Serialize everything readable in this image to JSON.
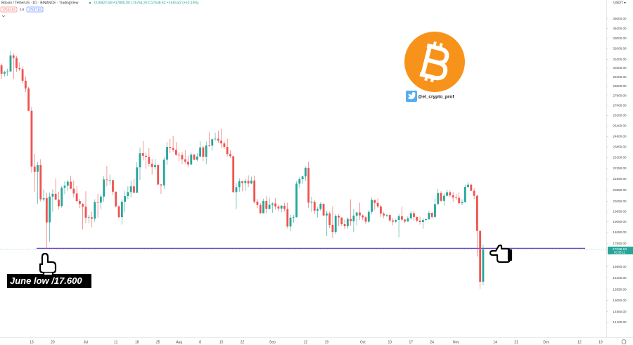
{
  "chart_data": {
    "type": "candlestick",
    "title": "Bitcoin / TetherUS · 1D · BINANCE · TradingView",
    "ohlc_legend": "O15922.68 H17800.00 L15754.26 C17538.62 +1616.82 (+10.15%)",
    "price_boxes": [
      "17534.83",
      "2.8",
      "17537.63"
    ],
    "currency": "USDT ▾",
    "up_color": "#26a69a",
    "down_color": "#ef5350",
    "log_scale": true,
    "grid": false,
    "ylim": [
      13480,
      37040
    ],
    "yticks": [
      {
        "value": 35000,
        "label": "35000.00"
      },
      {
        "value": 34000,
        "label": "34000.00"
      },
      {
        "value": 33000,
        "label": "33000.00"
      },
      {
        "value": 32000,
        "label": "32000.00"
      },
      {
        "value": 31000,
        "label": "31000.00"
      },
      {
        "value": 30200,
        "label": "30200.00"
      },
      {
        "value": 29400,
        "label": "29400.00"
      },
      {
        "value": 28600,
        "label": "28600.00"
      },
      {
        "value": 27800,
        "label": "27800.00"
      },
      {
        "value": 27000,
        "label": "27000.00"
      },
      {
        "value": 26200,
        "label": "26200.00"
      },
      {
        "value": 25400,
        "label": "25400.00"
      },
      {
        "value": 24600,
        "label": "24600.00"
      },
      {
        "value": 23850,
        "label": "23850.00"
      },
      {
        "value": 23100,
        "label": "23100.00"
      },
      {
        "value": 22350,
        "label": "22350.00"
      },
      {
        "value": 21650,
        "label": "21650.00"
      },
      {
        "value": 20950,
        "label": "20950.00"
      },
      {
        "value": 20250,
        "label": "20250.00"
      },
      {
        "value": 19650,
        "label": "19650.00"
      },
      {
        "value": 19050,
        "label": "19050.00"
      },
      {
        "value": 18450,
        "label": "18450.00"
      },
      {
        "value": 17850,
        "label": "17850.00"
      },
      {
        "value": 16650,
        "label": "16650.00"
      },
      {
        "value": 16100,
        "label": "16100.00"
      },
      {
        "value": 15550,
        "label": "15550.00"
      },
      {
        "value": 15050,
        "label": "15050.00"
      },
      {
        "value": 14550,
        "label": "14550.00"
      },
      {
        "value": 14100,
        "label": "14100.00"
      }
    ],
    "categories": [
      null,
      null,
      null,
      null,
      null,
      null,
      null,
      null,
      null,
      null,
      "13",
      null,
      null,
      null,
      null,
      null,
      null,
      "20",
      null,
      null,
      null,
      null,
      null,
      null,
      null,
      null,
      null,
      null,
      "Jul",
      null,
      null,
      null,
      null,
      null,
      null,
      null,
      null,
      null,
      "11",
      null,
      null,
      null,
      null,
      null,
      null,
      "18",
      null,
      null,
      null,
      null,
      null,
      null,
      "25",
      null,
      null,
      null,
      null,
      null,
      null,
      "Aug",
      null,
      null,
      null,
      null,
      null,
      null,
      "8",
      null,
      null,
      null,
      null,
      null,
      null,
      "15",
      null,
      null,
      null,
      null,
      null,
      null,
      "22",
      null,
      null,
      null,
      null,
      null,
      null,
      null,
      null,
      null,
      "Sep",
      null,
      null,
      null,
      null,
      null,
      null,
      null,
      null,
      null,
      null,
      "12",
      null,
      null,
      null,
      null,
      null,
      null,
      "19",
      null,
      null,
      null,
      null,
      null,
      null,
      null,
      null,
      null,
      null,
      null,
      "Oct",
      null,
      null,
      null,
      null,
      null,
      null,
      null,
      null,
      "10",
      null,
      null,
      null,
      null,
      null,
      null,
      "17",
      null,
      null,
      null,
      null,
      null,
      null,
      "24",
      null,
      null,
      null,
      null,
      null,
      null,
      null,
      "Nov",
      null,
      null,
      null,
      null,
      null,
      null,
      null,
      null,
      null,
      null,
      null,
      null,
      "14",
      null,
      null,
      null,
      null,
      null,
      null,
      "21",
      null,
      null,
      null,
      null,
      null,
      null,
      null,
      null,
      null,
      "Dec",
      null,
      null,
      null,
      null,
      null,
      null,
      null,
      null,
      null,
      null,
      "12",
      null,
      null,
      null,
      null,
      null,
      null,
      "19"
    ],
    "ohlc": [
      [
        30450,
        30630,
        29250,
        29700
      ],
      [
        29700,
        29950,
        29450,
        29860
      ],
      [
        29860,
        30150,
        29500,
        29900
      ],
      [
        29900,
        31750,
        29880,
        31370
      ],
      [
        31370,
        31550,
        29220,
        31130
      ],
      [
        31130,
        31320,
        29850,
        30200
      ],
      [
        30200,
        30700,
        29940,
        30110
      ],
      [
        30110,
        30350,
        28850,
        29080
      ],
      [
        29080,
        29440,
        28100,
        28420
      ],
      [
        28420,
        28550,
        26560,
        26570
      ],
      [
        26570,
        26880,
        22080,
        22480
      ],
      [
        22480,
        23360,
        20850,
        22130
      ],
      [
        22130,
        22800,
        20100,
        22580
      ],
      [
        22580,
        22980,
        20250,
        20380
      ],
      [
        20380,
        21000,
        20230,
        20450
      ],
      [
        20450,
        20790,
        17600,
        19020
      ],
      [
        19020,
        20800,
        17950,
        20550
      ],
      [
        20550,
        21000,
        19650,
        20720
      ],
      [
        20720,
        21700,
        20350,
        20360
      ],
      [
        20360,
        20860,
        19780,
        19970
      ],
      [
        19970,
        21200,
        19880,
        21100
      ],
      [
        21100,
        21520,
        20700,
        21230
      ],
      [
        21230,
        21600,
        20900,
        21490
      ],
      [
        21490,
        21880,
        21000,
        21040
      ],
      [
        21040,
        21550,
        20500,
        20740
      ],
      [
        20740,
        21200,
        20200,
        20280
      ],
      [
        20280,
        20400,
        19850,
        20100
      ],
      [
        20100,
        20150,
        18630,
        19940
      ],
      [
        19940,
        20880,
        18980,
        19290
      ],
      [
        19290,
        19440,
        18980,
        19310
      ],
      [
        19310,
        19650,
        18750,
        19230
      ],
      [
        19230,
        20380,
        19050,
        20210
      ],
      [
        20210,
        20720,
        19300,
        20180
      ],
      [
        20180,
        20670,
        19770,
        20550
      ],
      [
        20550,
        21840,
        20240,
        21630
      ],
      [
        21630,
        22530,
        21200,
        21590
      ],
      [
        21590,
        21950,
        21300,
        21590
      ],
      [
        21590,
        21600,
        20650,
        20850
      ],
      [
        20850,
        20880,
        19880,
        19960
      ],
      [
        19960,
        20000,
        19250,
        19320
      ],
      [
        19320,
        20380,
        18900,
        20230
      ],
      [
        20230,
        20880,
        19600,
        20580
      ],
      [
        20580,
        21200,
        20400,
        20830
      ],
      [
        20830,
        21560,
        20500,
        21190
      ],
      [
        21190,
        21680,
        20760,
        20790
      ],
      [
        20790,
        22780,
        20760,
        22430
      ],
      [
        22430,
        23800,
        21600,
        23400
      ],
      [
        23400,
        24280,
        22910,
        23220
      ],
      [
        23220,
        23430,
        22340,
        23150
      ],
      [
        23150,
        23760,
        22500,
        22680
      ],
      [
        22680,
        23000,
        21950,
        22450
      ],
      [
        22450,
        22990,
        22280,
        22580
      ],
      [
        22580,
        22660,
        21250,
        21310
      ],
      [
        21310,
        21350,
        20710,
        21250
      ],
      [
        21250,
        23110,
        21040,
        22950
      ],
      [
        22950,
        24200,
        22600,
        23850
      ],
      [
        23850,
        24440,
        23400,
        23770
      ],
      [
        23770,
        24650,
        23500,
        23640
      ],
      [
        23640,
        24180,
        23220,
        23290
      ],
      [
        23290,
        23500,
        22850,
        23270
      ],
      [
        23270,
        23470,
        22650,
        22980
      ],
      [
        22980,
        23650,
        22680,
        22820
      ],
      [
        22820,
        23230,
        22430,
        22620
      ],
      [
        22620,
        23450,
        22590,
        23310
      ],
      [
        23310,
        23350,
        22910,
        22950
      ],
      [
        22950,
        23400,
        22840,
        23170
      ],
      [
        23170,
        24250,
        23150,
        23810
      ],
      [
        23810,
        23930,
        22860,
        23150
      ],
      [
        23150,
        24230,
        22650,
        23950
      ],
      [
        23950,
        24920,
        23850,
        23940
      ],
      [
        23940,
        24450,
        23580,
        24400
      ],
      [
        24400,
        24890,
        24280,
        24440
      ],
      [
        24440,
        25050,
        24150,
        24300
      ],
      [
        24300,
        25200,
        23780,
        24100
      ],
      [
        24100,
        24250,
        23690,
        23850
      ],
      [
        23850,
        24450,
        23180,
        23340
      ],
      [
        23340,
        23600,
        23080,
        23190
      ],
      [
        23190,
        23220,
        20770,
        20830
      ],
      [
        20830,
        21380,
        19800,
        21140
      ],
      [
        21140,
        21700,
        20850,
        21520
      ],
      [
        21520,
        21520,
        20880,
        21400
      ],
      [
        21400,
        21680,
        20900,
        21530
      ],
      [
        21530,
        21900,
        21150,
        21370
      ],
      [
        21370,
        21820,
        21320,
        21560
      ],
      [
        21560,
        21880,
        20120,
        20240
      ],
      [
        20240,
        20400,
        19850,
        20040
      ],
      [
        20040,
        20150,
        19520,
        19550
      ],
      [
        19550,
        20420,
        19550,
        20280
      ],
      [
        20280,
        20580,
        19540,
        19810
      ],
      [
        19810,
        20490,
        19780,
        20050
      ],
      [
        20050,
        20200,
        19580,
        20130
      ],
      [
        20130,
        20450,
        19760,
        19950
      ],
      [
        19950,
        20060,
        19650,
        19830
      ],
      [
        19830,
        20050,
        19600,
        19990
      ],
      [
        19990,
        20170,
        19640,
        19800
      ],
      [
        19800,
        20180,
        18680,
        18790
      ],
      [
        18790,
        19460,
        18540,
        19290
      ],
      [
        19290,
        19450,
        19000,
        19320
      ],
      [
        19320,
        21500,
        19300,
        21360
      ],
      [
        21360,
        21800,
        21110,
        21650
      ],
      [
        21650,
        21860,
        21350,
        21830
      ],
      [
        21830,
        22490,
        21550,
        22390
      ],
      [
        22390,
        22800,
        19870,
        20180
      ],
      [
        20180,
        20540,
        19620,
        20230
      ],
      [
        20230,
        20350,
        19500,
        19700
      ],
      [
        19700,
        19900,
        19310,
        19800
      ],
      [
        19800,
        20200,
        19700,
        20110
      ],
      [
        20110,
        20120,
        19370,
        19420
      ],
      [
        19420,
        19690,
        18250,
        19540
      ],
      [
        19540,
        19640,
        18700,
        18880
      ],
      [
        18880,
        19950,
        18150,
        18480
      ],
      [
        18480,
        19500,
        18370,
        19400
      ],
      [
        19400,
        19490,
        18800,
        19300
      ],
      [
        19300,
        19300,
        18820,
        18920
      ],
      [
        18920,
        19180,
        18630,
        18800
      ],
      [
        18800,
        19310,
        18660,
        19220
      ],
      [
        19220,
        20380,
        18830,
        19080
      ],
      [
        19080,
        19790,
        18470,
        19410
      ],
      [
        19410,
        19640,
        18850,
        19590
      ],
      [
        19590,
        20180,
        19160,
        19420
      ],
      [
        19420,
        19480,
        19160,
        19310
      ],
      [
        19310,
        19400,
        18920,
        19060
      ],
      [
        19060,
        19720,
        19000,
        19630
      ],
      [
        19630,
        20480,
        19500,
        20340
      ],
      [
        20340,
        20370,
        19730,
        20160
      ],
      [
        20160,
        20460,
        19850,
        19950
      ],
      [
        19950,
        20060,
        19320,
        19530
      ],
      [
        19530,
        19620,
        19260,
        19420
      ],
      [
        19420,
        19520,
        19320,
        19440
      ],
      [
        19440,
        19520,
        19020,
        19130
      ],
      [
        19130,
        19270,
        18860,
        19060
      ],
      [
        19060,
        19220,
        18990,
        19160
      ],
      [
        19160,
        19520,
        18190,
        19380
      ],
      [
        19380,
        19950,
        19100,
        19180
      ],
      [
        19180,
        19220,
        18980,
        19070
      ],
      [
        19070,
        19380,
        19060,
        19260
      ],
      [
        19260,
        19680,
        19160,
        19550
      ],
      [
        19550,
        19710,
        19110,
        19330
      ],
      [
        19330,
        19350,
        19050,
        19120
      ],
      [
        19120,
        19350,
        18900,
        19040
      ],
      [
        19040,
        19260,
        18660,
        19160
      ],
      [
        19160,
        19250,
        19110,
        19200
      ],
      [
        19200,
        19700,
        19170,
        19570
      ],
      [
        19570,
        19600,
        19250,
        19330
      ],
      [
        19330,
        20420,
        19250,
        20090
      ],
      [
        20090,
        21020,
        20060,
        20770
      ],
      [
        20770,
        20880,
        20210,
        20290
      ],
      [
        20290,
        20750,
        20000,
        20600
      ],
      [
        20600,
        20990,
        20560,
        20820
      ],
      [
        20820,
        20940,
        20510,
        20630
      ],
      [
        20630,
        20840,
        20230,
        20490
      ],
      [
        20490,
        20700,
        20340,
        20480
      ],
      [
        20480,
        20800,
        20050,
        20150
      ],
      [
        20150,
        20390,
        20030,
        20210
      ],
      [
        20210,
        21300,
        20180,
        21150
      ],
      [
        21150,
        21480,
        21080,
        21300
      ],
      [
        21300,
        21370,
        20890,
        20910
      ],
      [
        20910,
        21070,
        20390,
        20600
      ],
      [
        20600,
        20670,
        17170,
        18540
      ],
      [
        18540,
        18600,
        15590,
        15920
      ],
      [
        15922.68,
        17800,
        15754.26,
        17538.62
      ],
      null,
      null,
      null,
      null,
      null,
      null,
      null,
      null,
      null,
      null,
      null,
      null,
      null,
      null,
      null,
      null,
      null,
      null,
      null,
      null,
      null,
      null,
      null,
      null,
      null,
      null,
      null,
      null,
      null,
      null,
      null,
      null,
      null,
      null,
      null,
      null,
      null,
      null,
      null
    ],
    "hline": {
      "value": 17600,
      "color": "#6a3fc1"
    },
    "last_price": {
      "value": 17538.63,
      "label": "17538.63",
      "countdown": "05:35:11",
      "color": "#26a69a"
    },
    "annotation": "June low /17.600",
    "handle": "@el_crypto_prof"
  }
}
